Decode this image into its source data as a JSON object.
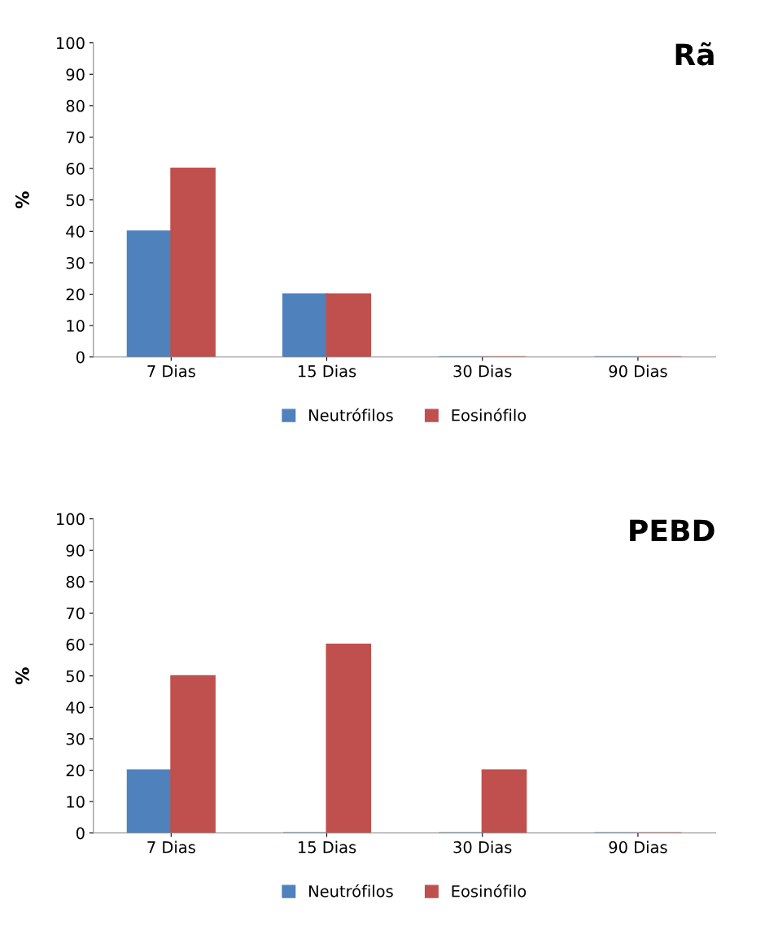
{
  "chart_data": [
    {
      "type": "bar",
      "title": "Rã",
      "ylabel": "%",
      "categories": [
        "7 Dias",
        "15 Dias",
        "30 Dias",
        "90 Dias"
      ],
      "series": [
        {
          "name": "Neutrófilos",
          "color": "#4f81bd",
          "values": [
            40,
            20,
            0,
            0
          ]
        },
        {
          "name": "Eosinófilo",
          "color": "#c0504d",
          "values": [
            60,
            20,
            0,
            0
          ]
        }
      ],
      "ylim": [
        0,
        100
      ],
      "yticks": [
        0,
        10,
        20,
        30,
        40,
        50,
        60,
        70,
        80,
        90,
        100
      ],
      "grid": false,
      "legend": "bottom"
    },
    {
      "type": "bar",
      "title": "PEBD",
      "ylabel": "%",
      "categories": [
        "7 Dias",
        "15 Dias",
        "30 Dias",
        "90 Dias"
      ],
      "series": [
        {
          "name": "Neutrófilos",
          "color": "#4f81bd",
          "values": [
            20,
            0,
            0,
            0
          ]
        },
        {
          "name": "Eosinófilo",
          "color": "#c0504d",
          "values": [
            50,
            60,
            20,
            0
          ]
        }
      ],
      "ylim": [
        0,
        100
      ],
      "yticks": [
        0,
        10,
        20,
        30,
        40,
        50,
        60,
        70,
        80,
        90,
        100
      ],
      "grid": false,
      "legend": "bottom"
    }
  ]
}
